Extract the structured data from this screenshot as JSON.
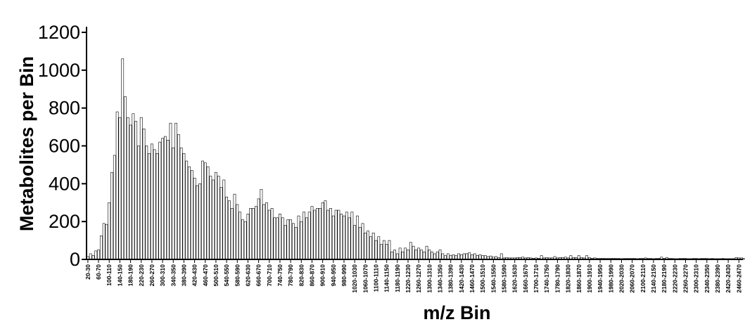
{
  "chart_data": {
    "type": "bar",
    "title": "",
    "xlabel": "m/z Bin",
    "ylabel": "Metabolites per Bin",
    "ylim": [
      0,
      1200
    ],
    "yticks": [
      "0",
      "200",
      "400",
      "600",
      "800",
      "1000",
      "1200"
    ],
    "bin_width": 10,
    "x_range": [
      20,
      2480
    ],
    "xtick_labels": [
      "20-30",
      "60-70",
      "100-110",
      "140-150",
      "180-190",
      "220-230",
      "260-270",
      "300-310",
      "340-350",
      "380-390",
      "420-430",
      "460-470",
      "500-510",
      "540-550",
      "580-590",
      "620-630",
      "660-670",
      "700-710",
      "740-750",
      "780-790",
      "820-830",
      "860-870",
      "900-910",
      "940-950",
      "980-990",
      "1020-1030",
      "1060-1070",
      "1100-1110",
      "1140-1150",
      "1180-1190",
      "1220-1230",
      "1260-1270",
      "1300-1310",
      "1340-1350",
      "1380-1390",
      "1420-1430",
      "1460-1470",
      "1500-1510",
      "1540-1550",
      "1580-1590",
      "1620-1630",
      "1660-1670",
      "1700-1710",
      "1740-1750",
      "1780-1790",
      "1820-1830",
      "1860-1870",
      "1900-1910",
      "1940-1950",
      "1980-1990",
      "2020-2030",
      "2060-2070",
      "2100-2110",
      "2140-2150",
      "2180-2190",
      "2220-2230",
      "2260-2270",
      "2300-2310",
      "2340-2350",
      "2380-2390",
      "2420-2430",
      "2460-2470"
    ],
    "values": [
      15,
      30,
      20,
      45,
      50,
      125,
      190,
      185,
      300,
      460,
      550,
      780,
      750,
      1060,
      860,
      750,
      710,
      770,
      730,
      600,
      750,
      690,
      600,
      560,
      610,
      580,
      560,
      620,
      640,
      650,
      630,
      720,
      590,
      720,
      660,
      590,
      560,
      520,
      490,
      470,
      430,
      390,
      400,
      520,
      510,
      490,
      440,
      420,
      460,
      440,
      380,
      420,
      330,
      310,
      270,
      345,
      290,
      250,
      210,
      200,
      240,
      270,
      270,
      280,
      320,
      370,
      290,
      300,
      260,
      270,
      220,
      220,
      240,
      220,
      180,
      210,
      210,
      190,
      170,
      230,
      200,
      250,
      220,
      250,
      280,
      260,
      270,
      270,
      300,
      310,
      260,
      270,
      230,
      260,
      260,
      240,
      230,
      250,
      220,
      250,
      180,
      230,
      170,
      190,
      140,
      150,
      120,
      140,
      100,
      120,
      80,
      100,
      80,
      100,
      40,
      50,
      30,
      60,
      40,
      60,
      50,
      90,
      70,
      50,
      60,
      50,
      40,
      70,
      50,
      40,
      30,
      40,
      50,
      30,
      20,
      30,
      20,
      25,
      20,
      30,
      25,
      30,
      30,
      35,
      25,
      30,
      20,
      25,
      20,
      20,
      15,
      18,
      12,
      15,
      10,
      30,
      8,
      10,
      8,
      8,
      8,
      10,
      10,
      12,
      8,
      10,
      8,
      6,
      8,
      6,
      20,
      8,
      10,
      8,
      8,
      15,
      8,
      10,
      10,
      12,
      8,
      20,
      10,
      10,
      20,
      10,
      8,
      20,
      10,
      6,
      8,
      5,
      5,
      6,
      5,
      5,
      5,
      6,
      5,
      5,
      4,
      5,
      5,
      5,
      5,
      5,
      4,
      5,
      5,
      8,
      5,
      5,
      4,
      5,
      5,
      12,
      5,
      10,
      5,
      5,
      4,
      4,
      5,
      5,
      5,
      4,
      4,
      5,
      5,
      4,
      5,
      5,
      5,
      4,
      5,
      4,
      4,
      4,
      5,
      4,
      4,
      4,
      4,
      10,
      8,
      8,
      5,
      5,
      4,
      5,
      4,
      4,
      4,
      4,
      4,
      3,
      4,
      3,
      3,
      3,
      4,
      3,
      3,
      3,
      3,
      3,
      3,
      3,
      3,
      3,
      3,
      3,
      3,
      3,
      3
    ]
  }
}
